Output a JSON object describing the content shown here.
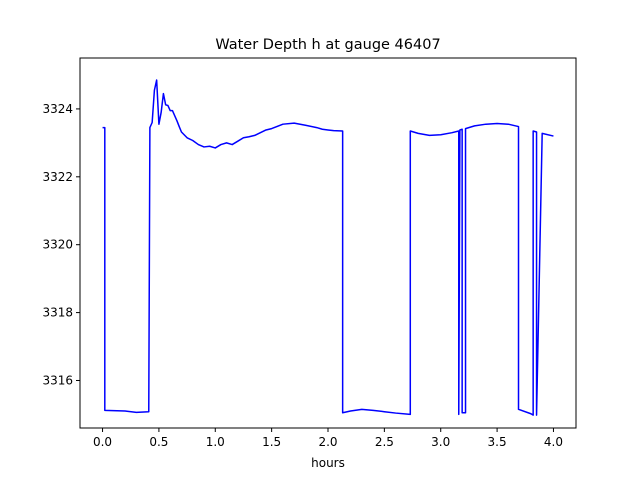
{
  "chart_data": {
    "type": "line",
    "title": "Water Depth h at gauge 46407",
    "xlabel": "hours",
    "ylabel": "",
    "xlim": [
      -0.2,
      4.2
    ],
    "ylim": [
      3314.6,
      3325.5
    ],
    "xticks": [
      0.0,
      0.5,
      1.0,
      1.5,
      2.0,
      2.5,
      3.0,
      3.5,
      4.0
    ],
    "xtick_labels": [
      "0.0",
      "0.5",
      "1.0",
      "1.5",
      "2.0",
      "2.5",
      "3.0",
      "3.5",
      "4.0"
    ],
    "yticks": [
      3316,
      3318,
      3320,
      3322,
      3324
    ],
    "ytick_labels": [
      "3316",
      "3318",
      "3320",
      "3322",
      "3324"
    ],
    "grid": false,
    "series": [
      {
        "color": "#0000ff",
        "x": [
          0.0,
          0.02,
          0.02,
          0.2,
          0.3,
          0.41,
          0.42,
          0.42,
          0.44,
          0.46,
          0.48,
          0.5,
          0.52,
          0.54,
          0.56,
          0.58,
          0.6,
          0.62,
          0.64,
          0.66,
          0.68,
          0.7,
          0.75,
          0.8,
          0.85,
          0.9,
          0.95,
          1.0,
          1.05,
          1.1,
          1.15,
          1.2,
          1.25,
          1.3,
          1.35,
          1.4,
          1.45,
          1.5,
          1.6,
          1.7,
          1.8,
          1.9,
          1.95,
          2.0,
          2.05,
          2.13,
          2.13,
          2.2,
          2.3,
          2.4,
          2.5,
          2.6,
          2.73,
          2.73,
          2.8,
          2.9,
          3.0,
          3.1,
          3.16,
          3.16,
          3.17,
          3.19,
          3.19,
          3.22,
          3.22,
          3.3,
          3.4,
          3.5,
          3.6,
          3.69,
          3.69,
          3.8,
          3.82,
          3.82,
          3.85,
          3.85,
          3.9,
          4.0
        ],
        "y": [
          3323.45,
          3323.45,
          3315.12,
          3315.1,
          3315.06,
          3315.08,
          3323.45,
          3323.45,
          3323.6,
          3324.55,
          3324.85,
          3323.55,
          3323.9,
          3324.45,
          3324.12,
          3324.1,
          3323.95,
          3323.95,
          3323.8,
          3323.65,
          3323.48,
          3323.32,
          3323.15,
          3323.07,
          3322.95,
          3322.88,
          3322.9,
          3322.85,
          3322.95,
          3323.0,
          3322.95,
          3323.05,
          3323.15,
          3323.18,
          3323.22,
          3323.3,
          3323.38,
          3323.42,
          3323.55,
          3323.58,
          3323.52,
          3323.45,
          3323.4,
          3323.38,
          3323.36,
          3323.35,
          3315.05,
          3315.1,
          3315.15,
          3315.12,
          3315.08,
          3315.04,
          3315.0,
          3323.35,
          3323.28,
          3323.22,
          3323.24,
          3323.3,
          3323.35,
          3315.0,
          3323.38,
          3323.4,
          3315.05,
          3315.05,
          3323.42,
          3323.5,
          3323.55,
          3323.57,
          3323.55,
          3323.48,
          3315.15,
          3315.02,
          3314.98,
          3323.35,
          3323.32,
          3314.98,
          3323.28,
          3323.2
        ]
      }
    ]
  }
}
